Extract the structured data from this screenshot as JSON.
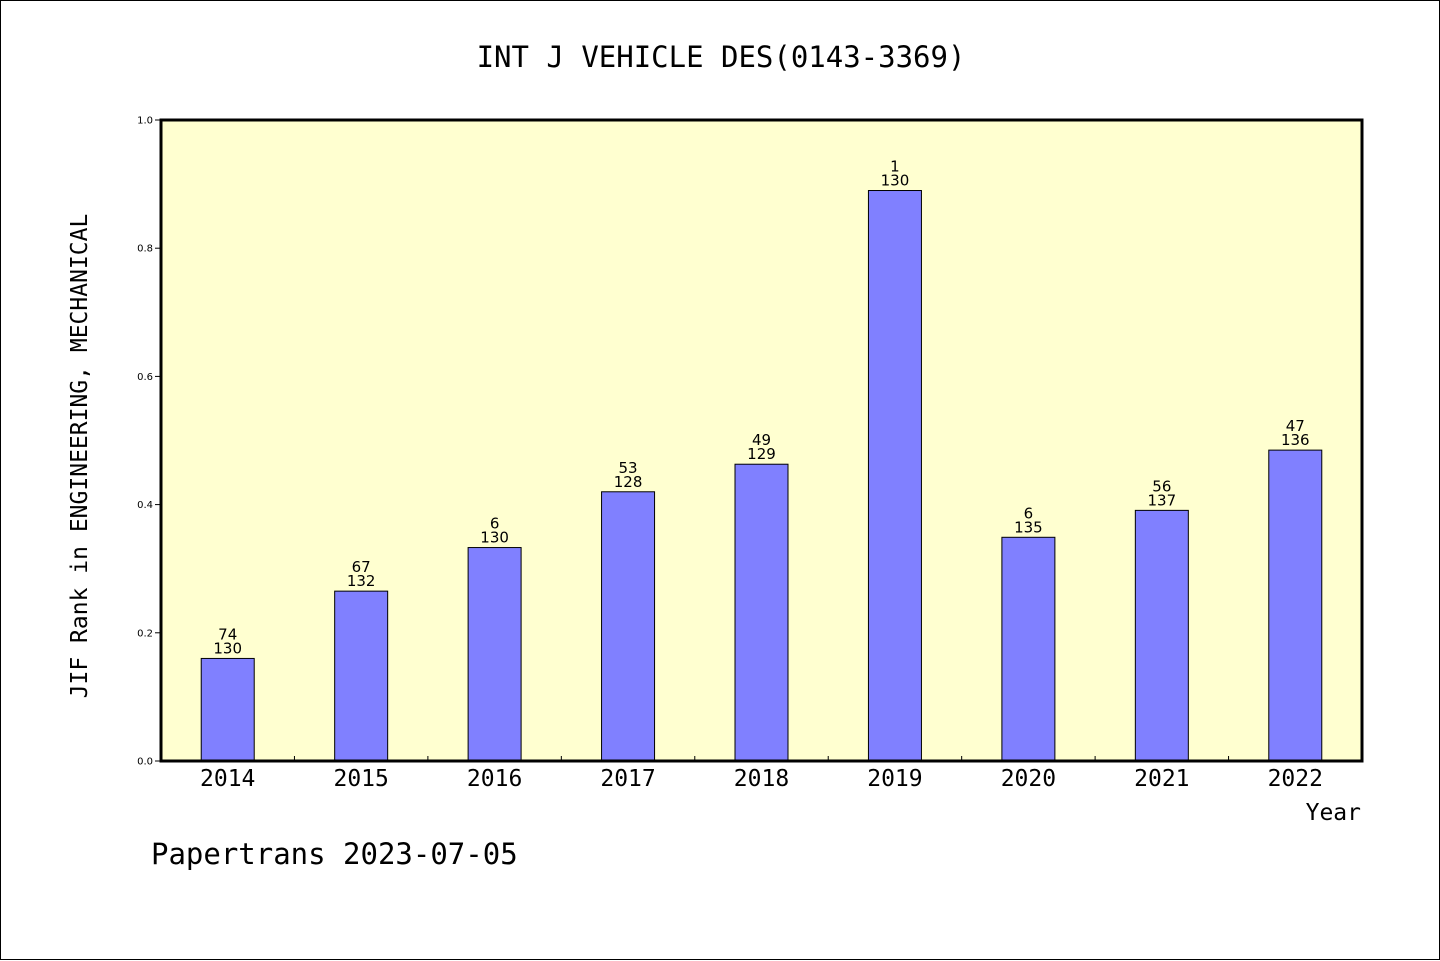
{
  "chart_data": {
    "type": "bar",
    "title": "INT J VEHICLE DES(0143-3369)",
    "xlabel": "Year",
    "ylabel": "JIF Rank in ENGINEERING, MECHANICAL",
    "footer": "Papertrans 2023-07-05",
    "ylim": [
      0,
      1.0
    ],
    "yticks": [
      "0.0",
      "0.2",
      "0.4",
      "0.6",
      "0.8",
      "1.0"
    ],
    "categories": [
      "2014",
      "2015",
      "2016",
      "2017",
      "2018",
      "2019",
      "2020",
      "2021",
      "2022"
    ],
    "values": [
      0.16,
      0.265,
      0.333,
      0.42,
      0.463,
      0.89,
      0.349,
      0.391,
      0.485
    ],
    "rank": [
      "74",
      "67",
      "6",
      "53",
      "49",
      "1",
      "6",
      "56",
      "47"
    ],
    "total": [
      "130",
      "132",
      "130",
      "128",
      "129",
      "130",
      "135",
      "137",
      "136"
    ],
    "colors": {
      "bar_fill": "#8080ff",
      "plot_background": "#ffffd0",
      "axis": "#000000"
    },
    "grid": false
  }
}
